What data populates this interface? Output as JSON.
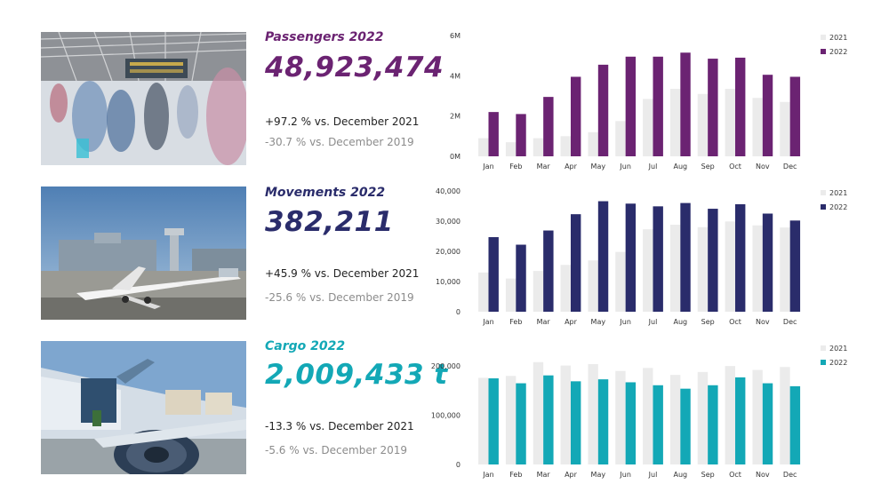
{
  "colors": {
    "passengers": "#6b2372",
    "movements": "#2a2c6b",
    "cargo": "#13a8b6",
    "previous_year": "#ebebeb"
  },
  "sections": [
    {
      "key": "passengers",
      "title": "Passengers 2022",
      "value": "48,923,474",
      "change_vs_prev": "+97.2 % vs. December 2021",
      "change_vs_2019": "-30.7 % vs. December 2019"
    },
    {
      "key": "movements",
      "title": "Movements 2022",
      "value": "382,211",
      "change_vs_prev": "+45.9 % vs. December 2021",
      "change_vs_2019": "-25.6 % vs. December 2019"
    },
    {
      "key": "cargo",
      "title": "Cargo 2022",
      "value": "2,009,433 t",
      "change_vs_prev": "-13.3 % vs. December 2021",
      "change_vs_2019": "-5.6 % vs. December 2019"
    }
  ],
  "chart_data": [
    {
      "type": "bar",
      "categories": [
        "Jan",
        "Feb",
        "Mar",
        "Apr",
        "May",
        "Jun",
        "Jul",
        "Aug",
        "Sep",
        "Oct",
        "Nov",
        "Dec"
      ],
      "series": [
        {
          "name": "2021",
          "values": [
            0.9,
            0.7,
            0.9,
            1.0,
            1.2,
            1.75,
            2.85,
            3.35,
            3.1,
            3.35,
            2.9,
            2.7
          ]
        },
        {
          "name": "2022",
          "values": [
            2.2,
            2.1,
            2.95,
            3.95,
            4.55,
            4.95,
            4.95,
            5.15,
            4.85,
            4.9,
            4.05,
            3.95
          ]
        }
      ],
      "ylim": [
        0,
        6
      ],
      "yticks": [
        0,
        2,
        4,
        6
      ],
      "ytick_labels": [
        "0M",
        "2M",
        "4M",
        "6M"
      ],
      "legend": "top-right",
      "grid": false
    },
    {
      "type": "bar",
      "categories": [
        "Jan",
        "Feb",
        "Mar",
        "Apr",
        "May",
        "Jun",
        "Jul",
        "Aug",
        "Sep",
        "Oct",
        "Nov",
        "Dec"
      ],
      "series": [
        {
          "name": "2021",
          "values": [
            13000,
            11000,
            13500,
            15500,
            17000,
            19800,
            27300,
            28800,
            28000,
            29900,
            28600,
            27900
          ]
        },
        {
          "name": "2022",
          "values": [
            24700,
            22200,
            26900,
            32300,
            36600,
            35800,
            34900,
            36000,
            34100,
            35600,
            32500,
            30200
          ]
        }
      ],
      "ylim": [
        0,
        40000
      ],
      "yticks": [
        0,
        10000,
        20000,
        30000,
        40000
      ],
      "ytick_labels": [
        "0",
        "10,000",
        "20,000",
        "30,000",
        "40,000"
      ],
      "legend": "top-right",
      "grid": false
    },
    {
      "type": "bar",
      "categories": [
        "Jan",
        "Feb",
        "Mar",
        "Apr",
        "May",
        "Jun",
        "Jul",
        "Aug",
        "Sep",
        "Oct",
        "Nov",
        "Dec"
      ],
      "series": [
        {
          "name": "2021",
          "values": [
            176000,
            180000,
            208000,
            201000,
            204000,
            190000,
            196000,
            182000,
            188000,
            200000,
            192000,
            198000
          ]
        },
        {
          "name": "2022",
          "values": [
            175000,
            165000,
            181000,
            169000,
            173000,
            167000,
            161000,
            154000,
            161000,
            177000,
            165000,
            159000
          ]
        }
      ],
      "ylim": [
        0,
        240000
      ],
      "yticks": [
        0,
        100000,
        200000
      ],
      "ytick_labels": [
        "0",
        "100,000",
        "200,000"
      ],
      "legend": "top-right",
      "grid": false
    }
  ]
}
